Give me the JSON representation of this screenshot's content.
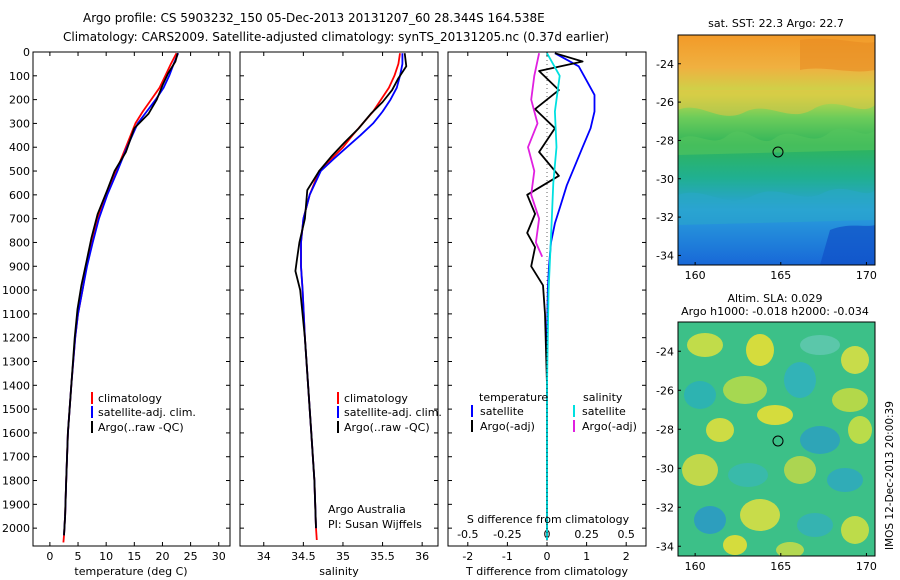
{
  "header": {
    "line1": "Argo profile: CS 5903232_150 05-Dec-2013 20131207_60 28.344S 164.538E",
    "line2": "Climatology: CARS2009. Satellite-adjusted climatology: synTS_20131205.nc (0.37d earlier)"
  },
  "panels": {
    "temperature": {
      "xlabel": "temperature (deg C)",
      "legend": [
        "climatology",
        "satellite-adj. clim.",
        "Argo(..raw -QC)"
      ]
    },
    "salinity": {
      "xlabel": "salinity",
      "legend": [
        "climatology",
        "satellite-adj. clim.",
        "Argo(..raw -QC)"
      ],
      "note1": "Argo Australia",
      "note2": "PI: Susan Wijffels"
    },
    "difference": {
      "xlabel": "T difference from climatology",
      "top_xlabel": "S difference from climatology",
      "legend_left_title": "temperature",
      "legend_left": [
        "satellite",
        "Argo(-adj)"
      ],
      "legend_right_title": "salinity",
      "legend_right": [
        "satellite",
        "Argo(-adj)"
      ]
    },
    "sst_map": {
      "title": "sat. SST: 22.3 Argo: 22.7"
    },
    "sla_map": {
      "title1": "Altim. SLA: 0.029",
      "title2": "Argo h1000: -0.018 h2000: -0.034"
    }
  },
  "side_label": "IMOS 12-Dec-2013 20:00:39",
  "colors": {
    "climatology": "#ff0000",
    "satellite": "#0000ff",
    "argo": "#000000",
    "sal_satellite": "#00e0e0",
    "sal_argo": "#e020e0"
  },
  "chart_data": [
    {
      "type": "line",
      "title": "",
      "xlabel": "temperature (deg C)",
      "ylabel": "",
      "xlim": [
        -3,
        32
      ],
      "ylim": [
        2075,
        0
      ],
      "xticks": [
        0,
        5,
        10,
        15,
        20,
        25,
        30
      ],
      "yticks": [
        0,
        100,
        200,
        300,
        400,
        500,
        600,
        700,
        800,
        900,
        1000,
        1100,
        1200,
        1300,
        1400,
        1500,
        1600,
        1700,
        1800,
        1900,
        2000
      ],
      "y_axis": "depth",
      "series": [
        {
          "name": "climatology",
          "color": "#ff0000",
          "x": [
            22.5,
            21.5,
            20.5,
            19.5,
            18.0,
            16.5,
            15.2,
            13.5,
            11.8,
            10.0,
            8.5,
            7.5,
            6.5,
            5.8,
            5.0,
            4.5,
            3.8,
            3.2,
            2.9,
            2.7,
            2.5,
            2.4
          ],
          "y": [
            5,
            50,
            100,
            150,
            200,
            250,
            300,
            400,
            500,
            600,
            700,
            800,
            900,
            1000,
            1100,
            1200,
            1400,
            1600,
            1800,
            1950,
            2030,
            2060
          ]
        },
        {
          "name": "satellite-adj. clim.",
          "color": "#0000ff",
          "x": [
            22.8,
            22.0,
            21.2,
            20.2,
            18.8,
            17.2,
            15.6,
            13.7,
            12.0,
            10.2,
            8.7,
            7.6,
            6.6,
            5.8,
            5.0,
            4.5,
            3.8,
            3.2,
            2.9,
            2.7,
            2.5
          ],
          "y": [
            5,
            50,
            100,
            150,
            200,
            250,
            300,
            400,
            500,
            600,
            700,
            800,
            900,
            1000,
            1100,
            1200,
            1400,
            1600,
            1800,
            1950,
            2030
          ]
        },
        {
          "name": "Argo(..raw -QC)",
          "color": "#000000",
          "x": [
            22.7,
            22.3,
            21.0,
            20.0,
            19.0,
            17.5,
            15.0,
            13.5,
            11.5,
            10.2,
            8.5,
            7.4,
            6.5,
            5.6,
            4.9,
            4.4,
            3.8,
            3.2,
            2.9,
            2.7,
            2.5
          ],
          "y": [
            5,
            40,
            90,
            140,
            200,
            260,
            320,
            420,
            500,
            580,
            680,
            780,
            880,
            980,
            1080,
            1200,
            1400,
            1600,
            1800,
            1950,
            2030
          ]
        }
      ]
    },
    {
      "type": "line",
      "title": "",
      "xlabel": "salinity",
      "ylabel": "",
      "xlim": [
        33.7,
        36.2
      ],
      "ylim": [
        2075,
        0
      ],
      "xticks": [
        34,
        34.5,
        35,
        35.5,
        36
      ],
      "yticks": [
        0,
        100,
        200,
        300,
        400,
        500,
        600,
        700,
        800,
        900,
        1000,
        1100,
        1200,
        1300,
        1400,
        1500,
        1600,
        1700,
        1800,
        1900,
        2000
      ],
      "y_axis": "depth",
      "series": [
        {
          "name": "climatology",
          "color": "#ff0000",
          "x": [
            35.72,
            35.7,
            35.65,
            35.58,
            35.48,
            35.38,
            35.25,
            35.12,
            35.0,
            34.85,
            34.7,
            34.58,
            34.5,
            34.47,
            34.47,
            34.49,
            34.52,
            34.56,
            34.6,
            34.64,
            34.66,
            34.67
          ],
          "y": [
            5,
            50,
            100,
            150,
            200,
            250,
            300,
            350,
            400,
            450,
            500,
            600,
            700,
            800,
            900,
            1000,
            1200,
            1400,
            1600,
            1800,
            2000,
            2050
          ]
        },
        {
          "name": "satellite-adj. clim.",
          "color": "#0000ff",
          "x": [
            35.75,
            35.75,
            35.72,
            35.68,
            35.6,
            35.5,
            35.38,
            35.22,
            35.05,
            34.88,
            34.72,
            34.58,
            34.5,
            34.47,
            34.47,
            34.49,
            34.52,
            34.56,
            34.6,
            34.64,
            34.66
          ],
          "y": [
            5,
            50,
            100,
            150,
            200,
            250,
            300,
            350,
            400,
            450,
            500,
            600,
            700,
            800,
            900,
            1000,
            1200,
            1400,
            1600,
            1800,
            2000
          ]
        },
        {
          "name": "Argo(..raw -QC)",
          "color": "#000000",
          "x": [
            35.78,
            35.8,
            35.7,
            35.62,
            35.5,
            35.35,
            35.2,
            35.02,
            34.85,
            34.7,
            34.55,
            34.52,
            34.45,
            34.42,
            34.4,
            34.46,
            34.52,
            34.56,
            34.6,
            34.64,
            34.66
          ],
          "y": [
            5,
            60,
            110,
            160,
            210,
            260,
            320,
            380,
            440,
            500,
            580,
            700,
            800,
            870,
            920,
            1000,
            1200,
            1400,
            1600,
            1800,
            2000
          ]
        }
      ]
    },
    {
      "type": "line",
      "title": "",
      "xlabel": "T difference from climatology",
      "xlabel_top": "S difference from climatology",
      "ylabel": "",
      "xlim": [
        -2.5,
        2.5
      ],
      "ylim": [
        2075,
        0
      ],
      "xticks": [
        -2,
        -1,
        0,
        1,
        2
      ],
      "xticks_S": [
        -0.5,
        -0.25,
        0,
        0.25,
        0.5
      ],
      "yticks": [
        0,
        100,
        200,
        300,
        400,
        500,
        600,
        700,
        800,
        900,
        1000,
        1100,
        1200,
        1300,
        1400,
        1500,
        1600,
        1700,
        1800,
        1900,
        2000
      ],
      "y_axis": "depth",
      "series": [
        {
          "name": "temperature satellite",
          "color": "#0000ff",
          "x": [
            0.2,
            0.8,
            1.0,
            1.2,
            1.2,
            1.1,
            0.9,
            0.7,
            0.5,
            0.35,
            0.2,
            0.1,
            0.05,
            0.02,
            0.0,
            0.0,
            0.0
          ],
          "y": [
            5,
            60,
            120,
            180,
            250,
            320,
            400,
            480,
            560,
            640,
            720,
            800,
            900,
            1000,
            1200,
            1600,
            2050
          ]
        },
        {
          "name": "temperature Argo(-adj)",
          "color": "#000000",
          "x": [
            0.2,
            0.9,
            -0.2,
            0.3,
            -0.3,
            0.2,
            -0.2,
            0.3,
            -0.5,
            -0.3,
            -0.5,
            -0.3,
            -0.4,
            -0.1,
            -0.05,
            0.0,
            0.0
          ],
          "y": [
            5,
            40,
            80,
            160,
            240,
            320,
            420,
            520,
            600,
            680,
            760,
            820,
            900,
            980,
            1100,
            1400,
            2050
          ]
        },
        {
          "name": "salinity satellite",
          "color": "#00e0e0",
          "x": [
            0.0,
            0.08,
            0.05,
            0.06,
            0.04,
            0.03,
            0.02,
            0.01,
            0.0,
            0.0
          ],
          "y": [
            5,
            100,
            250,
            400,
            550,
            700,
            850,
            1000,
            1400,
            2050
          ]
        },
        {
          "name": "salinity Argo(-adj)",
          "color": "#e020e0",
          "x": [
            -0.05,
            -0.08,
            -0.1,
            -0.06,
            -0.12,
            -0.08,
            -0.1,
            -0.05,
            -0.07,
            -0.03
          ],
          "y": [
            5,
            100,
            200,
            300,
            400,
            500,
            600,
            700,
            800,
            860
          ]
        }
      ]
    },
    {
      "type": "heatmap",
      "title": "sat. SST: 22.3 Argo: 22.7",
      "xticks": [
        160,
        165,
        170
      ],
      "yticks": [
        -24,
        -26,
        -28,
        -30,
        -32,
        -34
      ],
      "xlim": [
        159,
        170.5
      ],
      "ylim": [
        -34.5,
        -22.5
      ],
      "marker": {
        "lon": 164.5,
        "lat": -28.3
      }
    },
    {
      "type": "heatmap",
      "title": "Altim. SLA: 0.029",
      "subtitle": "Argo h1000: -0.018 h2000: -0.034",
      "xticks": [
        160,
        165,
        170
      ],
      "yticks": [
        -24,
        -26,
        -28,
        -30,
        -32,
        -34
      ],
      "xlim": [
        159,
        170.5
      ],
      "ylim": [
        -34.5,
        -22.5
      ],
      "marker": {
        "lon": 164.5,
        "lat": -28.3
      }
    }
  ]
}
